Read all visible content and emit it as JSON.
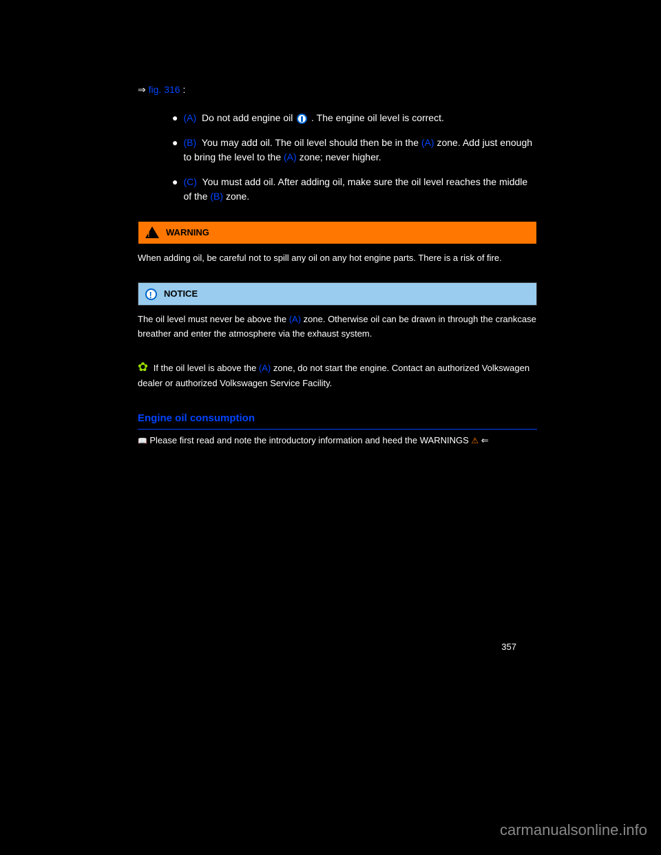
{
  "intro": {
    "prefix": "⇒",
    "fig_link": "fig. 316",
    "suffix": ":"
  },
  "areas": {
    "A": {
      "label": "(A)",
      "text1": " Do not add engine oil ",
      "text2": ". The engine oil level is correct."
    },
    "B": {
      "label": "(B)",
      "text1": " You may add oil. The oil level should then be in the ",
      "ref1": "(A)",
      "text2": " zone. Add just enough to bring the level to the ",
      "ref2": "(A)",
      "text3": " zone; never higher."
    },
    "C": {
      "label": "(C)",
      "text1": " You must add oil. After adding oil, make sure the oil level reaches the middle of the ",
      "ref1": "(B)",
      "text2": " zone."
    }
  },
  "warning": {
    "title": "WARNING",
    "text": "When adding oil, be careful not to spill any oil on any hot engine parts. There is a risk of fire."
  },
  "notice": {
    "title": "NOTICE",
    "text1": "The oil level must never be above the ",
    "ref1": "(A)",
    "text2": " zone. Otherwise oil can be drawn in through the crankcase breather and enter the atmosphere via the exhaust system."
  },
  "env_note": {
    "text1": "If the oil level is above the ",
    "ref1": "(A)",
    "text2": " zone, do not start the engine. Contact an authorized Volkswagen dealer or authorized Volkswagen Service Facility."
  },
  "section": {
    "heading": "Engine oil consumption",
    "read_first": "Please first read and note the introductory information and heed the WARNINGS",
    "arrow": "⇐"
  },
  "page_number": "357",
  "watermark": "carmanualsonline.info",
  "colors": {
    "blue_link": "#0044ff",
    "warning_bg": "#ff7700",
    "notice_bg": "#99ccee",
    "flower": "#99dd00",
    "background": "#000000",
    "text": "#ffffff"
  }
}
